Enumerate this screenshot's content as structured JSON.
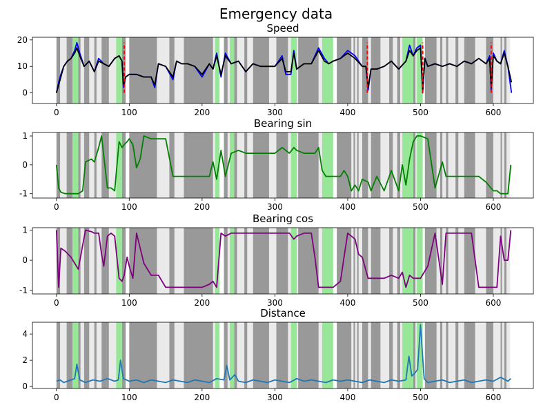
{
  "figure_title": "Emergency data",
  "chart_data": [
    {
      "type": "line",
      "title": "Speed",
      "xlabel": "",
      "ylabel": "",
      "xlim": [
        -33,
        655
      ],
      "ylim": [
        -4,
        21
      ],
      "xticks": [
        0,
        100,
        200,
        300,
        400,
        500,
        600
      ],
      "yticks": [
        0,
        10,
        20
      ],
      "x": [
        0,
        3,
        6,
        10,
        15,
        20,
        25,
        28,
        32,
        38,
        45,
        52,
        58,
        65,
        72,
        80,
        86,
        90,
        92,
        95,
        100,
        110,
        120,
        130,
        135,
        140,
        150,
        160,
        165,
        172,
        180,
        190,
        200,
        210,
        215,
        220,
        226,
        232,
        240,
        250,
        260,
        270,
        280,
        290,
        300,
        310,
        315,
        322,
        326,
        330,
        340,
        350,
        360,
        368,
        374,
        380,
        390,
        400,
        410,
        420,
        425,
        428,
        432,
        440,
        450,
        460,
        470,
        480,
        485,
        490,
        495,
        500,
        503,
        506,
        510,
        520,
        530,
        540,
        550,
        560,
        570,
        580,
        590,
        595,
        597,
        600,
        605,
        610,
        615,
        620,
        625
      ],
      "series": [
        {
          "name": "Speed (blue)",
          "color": "#0000ff",
          "values": [
            0,
            4,
            7,
            10,
            12,
            13,
            16,
            19,
            15,
            10,
            12,
            8,
            13,
            11,
            10,
            13,
            14,
            12,
            2,
            6,
            7,
            7,
            6,
            6,
            2,
            11,
            10,
            5,
            12,
            11,
            11,
            10,
            6,
            11,
            9,
            15,
            6,
            15,
            11,
            12,
            8,
            11,
            10,
            10,
            10,
            14,
            7,
            7,
            16,
            9,
            11,
            11,
            17,
            13,
            11,
            12,
            13,
            16,
            14,
            10,
            10,
            1,
            9,
            9,
            10,
            12,
            9,
            12,
            18,
            14,
            17,
            18,
            0,
            13,
            10,
            11,
            10,
            11,
            10,
            12,
            11,
            13,
            11,
            14,
            1,
            15,
            12,
            11,
            16,
            10,
            0
          ]
        },
        {
          "name": "Speed (black)",
          "color": "#000000",
          "values": [
            0,
            3,
            6,
            10,
            12,
            13,
            15,
            17,
            14,
            10,
            12,
            8,
            12,
            11,
            10,
            13,
            14,
            12,
            3,
            6,
            7,
            7,
            6,
            6,
            3,
            11,
            10,
            6,
            12,
            11,
            11,
            10,
            7,
            11,
            9,
            14,
            7,
            14,
            11,
            12,
            8,
            11,
            10,
            10,
            10,
            13,
            8,
            8,
            15,
            9,
            11,
            11,
            16,
            12,
            11,
            12,
            13,
            15,
            13,
            10,
            10,
            2,
            9,
            9,
            10,
            12,
            9,
            12,
            16,
            14,
            16,
            17,
            1,
            13,
            10,
            11,
            10,
            11,
            10,
            12,
            11,
            13,
            11,
            13,
            2,
            14,
            12,
            11,
            15,
            10,
            4
          ]
        }
      ],
      "markers": [
        {
          "name": "Event markers",
          "color": "#ff0000",
          "style": "dashed",
          "x": [
            93,
            427,
            503,
            597
          ],
          "from": 0,
          "to": 19
        }
      ]
    },
    {
      "type": "line",
      "title": "Bearing sin",
      "xlabel": "",
      "ylabel": "",
      "xlim": [
        -33,
        655
      ],
      "ylim": [
        -1.15,
        1.12
      ],
      "xticks": [
        0,
        100,
        200,
        300,
        400,
        500,
        600
      ],
      "yticks": [
        -1,
        0,
        1
      ],
      "x": [
        0,
        3,
        6,
        12,
        20,
        30,
        36,
        40,
        48,
        52,
        58,
        62,
        65,
        70,
        75,
        80,
        86,
        90,
        93,
        97,
        100,
        105,
        110,
        115,
        120,
        130,
        140,
        150,
        160,
        170,
        180,
        190,
        200,
        210,
        215,
        220,
        226,
        232,
        240,
        250,
        260,
        270,
        280,
        290,
        300,
        310,
        320,
        326,
        330,
        340,
        350,
        355,
        360,
        365,
        370,
        380,
        390,
        395,
        400,
        405,
        410,
        415,
        420,
        428,
        432,
        440,
        450,
        460,
        470,
        475,
        480,
        485,
        490,
        495,
        500,
        510,
        520,
        530,
        535,
        540,
        550,
        560,
        570,
        580,
        590,
        600,
        605,
        610,
        615,
        620,
        624
      ],
      "series": [
        {
          "name": "Bearing sin",
          "color": "#008000",
          "values": [
            0,
            -0.8,
            -0.95,
            -1,
            -1,
            -1,
            -0.9,
            0.1,
            0.2,
            0.1,
            0.6,
            1,
            0.3,
            -0.8,
            -0.8,
            -0.9,
            0.8,
            0.6,
            0.7,
            0.8,
            0.9,
            0.7,
            -0.1,
            0.2,
            1,
            0.9,
            0.9,
            0.9,
            -0.4,
            -0.4,
            -0.4,
            -0.4,
            -0.4,
            -0.4,
            0.1,
            -0.5,
            0.5,
            -0.4,
            0.4,
            0.5,
            0.4,
            0.4,
            0.4,
            0.4,
            0.4,
            0.6,
            0.4,
            0.6,
            0.5,
            0.4,
            0.4,
            0.4,
            0.6,
            -0.2,
            -0.4,
            -0.4,
            -0.4,
            -0.2,
            -0.4,
            -0.9,
            -0.7,
            -0.9,
            -0.5,
            -0.6,
            -0.9,
            -0.4,
            -0.9,
            -0.2,
            -0.9,
            0,
            -0.7,
            0.2,
            0.8,
            1,
            1,
            0.9,
            -0.8,
            0.1,
            -0.4,
            -0.4,
            -0.4,
            -0.4,
            -0.4,
            -0.4,
            -0.6,
            -0.9,
            -0.9,
            -1,
            -1,
            -1,
            0
          ]
        }
      ]
    },
    {
      "type": "line",
      "title": "Bearing cos",
      "xlabel": "",
      "ylabel": "",
      "xlim": [
        -33,
        655
      ],
      "ylim": [
        -1.12,
        1.08
      ],
      "xticks": [
        0,
        100,
        200,
        300,
        400,
        500,
        600
      ],
      "yticks": [
        -1,
        0,
        1
      ],
      "x": [
        0,
        3,
        6,
        12,
        20,
        30,
        36,
        40,
        48,
        52,
        58,
        62,
        65,
        70,
        75,
        80,
        86,
        90,
        93,
        97,
        100,
        105,
        110,
        115,
        120,
        130,
        140,
        150,
        160,
        170,
        180,
        190,
        200,
        210,
        215,
        220,
        226,
        232,
        240,
        250,
        260,
        270,
        280,
        290,
        300,
        310,
        320,
        326,
        330,
        340,
        350,
        355,
        360,
        365,
        370,
        380,
        390,
        395,
        400,
        405,
        410,
        415,
        420,
        428,
        432,
        440,
        450,
        460,
        470,
        475,
        480,
        485,
        490,
        495,
        500,
        510,
        520,
        530,
        535,
        540,
        550,
        560,
        570,
        580,
        590,
        600,
        605,
        610,
        615,
        620,
        624
      ],
      "series": [
        {
          "name": "Bearing cos",
          "color": "#800080",
          "values": [
            1,
            -0.9,
            0.4,
            0.3,
            0.1,
            -0.3,
            0.5,
            1,
            0.95,
            0.9,
            0.9,
            0.2,
            -0.2,
            0.8,
            0.9,
            0.8,
            -0.6,
            -0.7,
            -0.5,
            0.1,
            -0.2,
            -0.6,
            0.9,
            0.4,
            -0.1,
            -0.5,
            -0.5,
            -0.9,
            -0.9,
            -0.9,
            -0.9,
            -0.9,
            -0.9,
            -0.8,
            -0.7,
            -0.9,
            0.9,
            0.8,
            0.9,
            0.9,
            0.9,
            0.9,
            0.9,
            0.9,
            0.9,
            0.9,
            0.9,
            0.7,
            0.8,
            0.9,
            0.9,
            0.1,
            -0.9,
            -0.9,
            -0.9,
            -0.9,
            -0.7,
            0.1,
            0.9,
            0.8,
            0.7,
            0.2,
            0.1,
            -0.6,
            -0.6,
            -0.6,
            -0.6,
            -0.5,
            -0.6,
            -0.4,
            -0.9,
            -0.5,
            -0.6,
            -0.6,
            -0.6,
            -0.2,
            0.9,
            -0.8,
            0.9,
            0.9,
            0.9,
            0.9,
            0.9,
            -0.9,
            -0.9,
            -0.9,
            -0.9,
            0.8,
            0,
            0,
            1
          ]
        }
      ]
    },
    {
      "type": "line",
      "title": "Distance",
      "xlabel": "",
      "ylabel": "",
      "xlim": [
        -33,
        655
      ],
      "ylim": [
        -0.15,
        4.9
      ],
      "xticks": [
        0,
        100,
        200,
        300,
        400,
        500,
        600
      ],
      "yticks": [
        0,
        2,
        4
      ],
      "x": [
        0,
        5,
        10,
        15,
        20,
        25,
        28,
        32,
        40,
        50,
        60,
        70,
        80,
        85,
        88,
        92,
        100,
        110,
        120,
        130,
        140,
        150,
        160,
        170,
        180,
        190,
        200,
        210,
        220,
        230,
        234,
        238,
        245,
        250,
        260,
        270,
        280,
        290,
        300,
        310,
        320,
        330,
        340,
        350,
        360,
        370,
        380,
        390,
        400,
        410,
        420,
        430,
        440,
        450,
        460,
        470,
        480,
        484,
        488,
        492,
        496,
        500,
        505,
        510,
        520,
        530,
        540,
        550,
        560,
        570,
        580,
        590,
        600,
        610,
        620,
        624
      ],
      "series": [
        {
          "name": "Distance",
          "color": "#1f77b4",
          "values": [
            0.4,
            0.5,
            0.3,
            0.4,
            0.5,
            0.6,
            1.7,
            0.5,
            0.3,
            0.5,
            0.4,
            0.6,
            0.4,
            0.5,
            2.0,
            0.6,
            0.4,
            0.5,
            0.3,
            0.5,
            0.4,
            0.3,
            0.5,
            0.4,
            0.3,
            0.5,
            0.4,
            0.3,
            0.6,
            0.5,
            1.6,
            0.5,
            0.9,
            0.4,
            0.3,
            0.5,
            0.4,
            0.3,
            0.5,
            0.4,
            0.3,
            0.6,
            0.4,
            0.5,
            0.4,
            0.3,
            0.5,
            0.4,
            0.5,
            0.4,
            0.3,
            0.5,
            0.4,
            0.3,
            0.5,
            0.4,
            0.5,
            2.3,
            0.8,
            1.0,
            1.3,
            4.7,
            0.6,
            0.3,
            0.4,
            0.5,
            0.3,
            0.4,
            0.5,
            0.3,
            0.4,
            0.5,
            0.4,
            0.7,
            0.4,
            0.6
          ]
        }
      ]
    }
  ],
  "background_bands": {
    "dark_color": "#999999",
    "light_color": "#eaeaea",
    "green_color": "#98e698",
    "dark": [
      [
        0,
        5
      ],
      [
        14,
        22
      ],
      [
        30,
        33
      ],
      [
        38,
        45
      ],
      [
        52,
        55
      ],
      [
        62,
        72
      ],
      [
        90,
        95
      ],
      [
        100,
        138
      ],
      [
        155,
        162
      ],
      [
        175,
        215
      ],
      [
        230,
        235
      ],
      [
        244,
        248
      ],
      [
        258,
        262
      ],
      [
        270,
        292
      ],
      [
        302,
        318
      ],
      [
        332,
        360
      ],
      [
        385,
        405
      ],
      [
        408,
        410
      ],
      [
        413,
        415
      ],
      [
        420,
        428
      ],
      [
        432,
        445
      ],
      [
        457,
        462
      ],
      [
        468,
        472
      ],
      [
        490,
        493
      ],
      [
        506,
        522
      ],
      [
        527,
        530
      ],
      [
        535,
        538
      ],
      [
        548,
        552
      ],
      [
        560,
        575
      ],
      [
        590,
        600
      ],
      [
        610,
        612
      ],
      [
        615,
        618
      ]
    ],
    "light": [
      [
        5,
        14
      ],
      [
        33,
        38
      ],
      [
        45,
        52
      ],
      [
        55,
        62
      ],
      [
        72,
        82
      ],
      [
        138,
        155
      ],
      [
        162,
        175
      ],
      [
        215,
        218
      ],
      [
        235,
        238
      ],
      [
        248,
        258
      ],
      [
        262,
        270
      ],
      [
        292,
        302
      ],
      [
        318,
        322
      ],
      [
        330,
        332
      ],
      [
        360,
        365
      ],
      [
        405,
        408
      ],
      [
        410,
        413
      ],
      [
        415,
        420
      ],
      [
        428,
        432
      ],
      [
        445,
        457
      ],
      [
        462,
        468
      ],
      [
        472,
        475
      ],
      [
        493,
        495
      ],
      [
        522,
        527
      ],
      [
        530,
        535
      ],
      [
        538,
        548
      ],
      [
        552,
        560
      ],
      [
        575,
        590
      ],
      [
        600,
        610
      ],
      [
        612,
        615
      ],
      [
        618,
        623
      ]
    ],
    "green": [
      [
        22,
        30
      ],
      [
        82,
        90
      ],
      [
        218,
        224
      ],
      [
        238,
        244
      ],
      [
        322,
        330
      ],
      [
        365,
        380
      ],
      [
        475,
        490
      ],
      [
        495,
        503
      ]
    ]
  }
}
